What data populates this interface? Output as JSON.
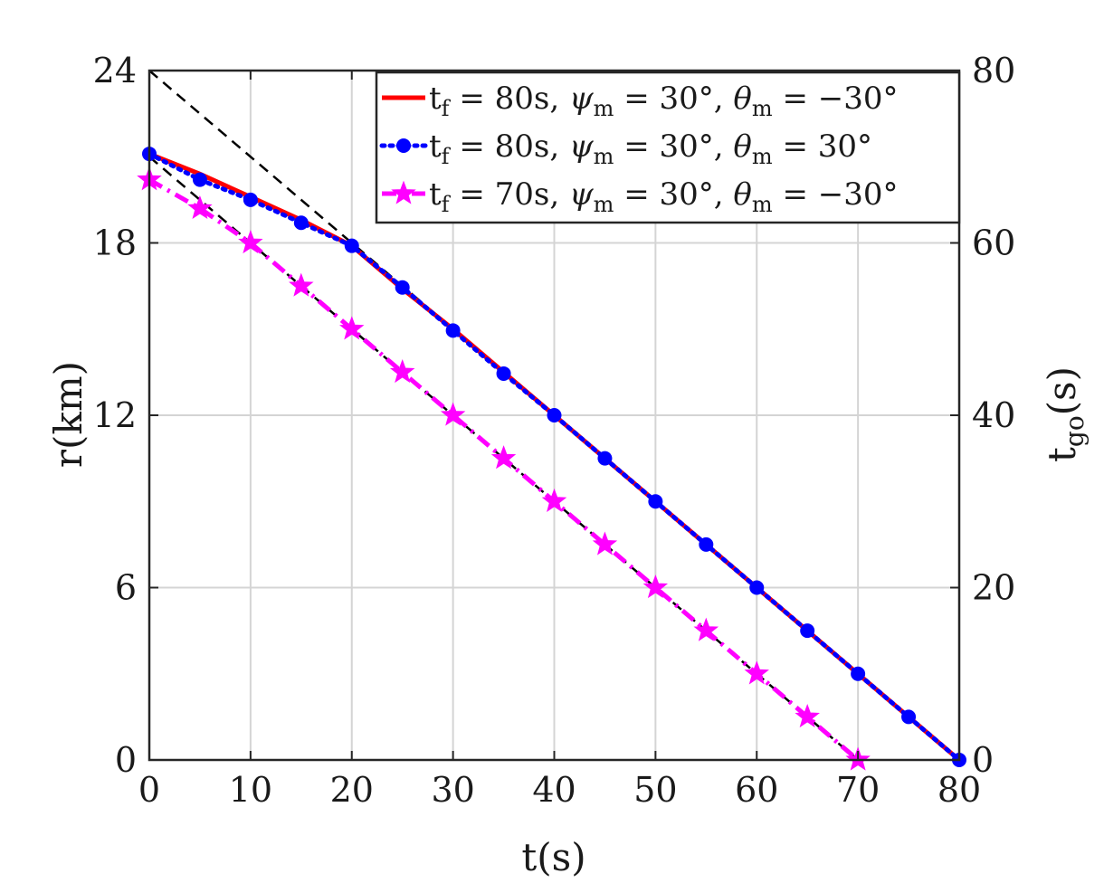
{
  "chart_data": {
    "type": "line",
    "title": "",
    "xlabel": "t(s)",
    "ylabel": "r(km)",
    "ylabel_right": {
      "base": "t",
      "sub": "go",
      "suffix": "(s)"
    },
    "xlim": [
      0,
      80
    ],
    "ylim": [
      0,
      24
    ],
    "ylim_right": [
      0,
      80
    ],
    "x_ticks": [
      0,
      10,
      20,
      30,
      40,
      50,
      60,
      70,
      80
    ],
    "y_ticks": [
      0,
      6,
      12,
      18,
      24
    ],
    "y_ticks_right": [
      0,
      20,
      40,
      60,
      80
    ],
    "grid": true,
    "legend_position": "top-right",
    "series": [
      {
        "name": "t_f = 80s, ψ_m = 30°, θ_m = −30°",
        "legend": [
          {
            "t": "t"
          },
          {
            "t": "f",
            "sub": true
          },
          {
            "t": " = 80s, "
          },
          {
            "t": "ψ",
            "italic": true
          },
          {
            "t": "m",
            "sub": true
          },
          {
            "t": " = 30°, "
          },
          {
            "t": "θ",
            "italic": true
          },
          {
            "t": "m",
            "sub": true
          },
          {
            "t": " = −30°"
          }
        ],
        "color": "#ff0000",
        "style": "solid",
        "marker": "none",
        "x": [
          0,
          5,
          10,
          15,
          20,
          25,
          30,
          35,
          40,
          45,
          50,
          55,
          60,
          65,
          70,
          75,
          80
        ],
        "y": [
          21.1,
          20.4,
          19.6,
          18.8,
          17.9,
          16.4,
          15.0,
          13.5,
          12.0,
          10.5,
          9.0,
          7.5,
          6.0,
          4.5,
          3.0,
          1.5,
          0.0
        ]
      },
      {
        "name": "t_f = 80s, ψ_m = 30°, θ_m = 30°",
        "legend": [
          {
            "t": "t"
          },
          {
            "t": "f",
            "sub": true
          },
          {
            "t": " = 80s, "
          },
          {
            "t": "ψ",
            "italic": true
          },
          {
            "t": "m",
            "sub": true
          },
          {
            "t": " = 30°, "
          },
          {
            "t": "θ",
            "italic": true
          },
          {
            "t": "m",
            "sub": true
          },
          {
            "t": " = 30°"
          }
        ],
        "color": "#0000ff",
        "style": "dotted",
        "marker": "circle",
        "x": [
          0,
          5,
          10,
          15,
          20,
          25,
          30,
          35,
          40,
          45,
          50,
          55,
          60,
          65,
          70,
          75,
          80
        ],
        "y": [
          21.1,
          20.2,
          19.5,
          18.7,
          17.9,
          16.45,
          14.95,
          13.45,
          12.0,
          10.5,
          9.0,
          7.5,
          6.0,
          4.5,
          3.0,
          1.5,
          0.0
        ]
      },
      {
        "name": "t_f = 70s, ψ_m = 30°, θ_m = −30°",
        "legend": [
          {
            "t": "t"
          },
          {
            "t": "f",
            "sub": true
          },
          {
            "t": " = 70s, "
          },
          {
            "t": "ψ",
            "italic": true
          },
          {
            "t": "m",
            "sub": true
          },
          {
            "t": " = 30°, "
          },
          {
            "t": "θ",
            "italic": true
          },
          {
            "t": "m",
            "sub": true
          },
          {
            "t": " = −30°"
          }
        ],
        "color": "#ff00ff",
        "style": "dashdot",
        "marker": "star",
        "x": [
          0,
          5,
          10,
          15,
          20,
          25,
          30,
          35,
          40,
          45,
          50,
          55,
          60,
          65,
          70
        ],
        "y": [
          20.2,
          19.2,
          18.0,
          16.5,
          15.0,
          13.5,
          12.0,
          10.5,
          9.0,
          7.5,
          6.0,
          4.5,
          3.0,
          1.5,
          0.0
        ]
      }
    ],
    "reference_lines": [
      {
        "axis": "right",
        "style": "dashed",
        "color": "#000000",
        "x": [
          0,
          80
        ],
        "y": [
          80,
          0
        ]
      },
      {
        "axis": "right",
        "style": "dashed",
        "color": "#000000",
        "x": [
          0,
          70
        ],
        "y": [
          70,
          0
        ]
      }
    ]
  }
}
